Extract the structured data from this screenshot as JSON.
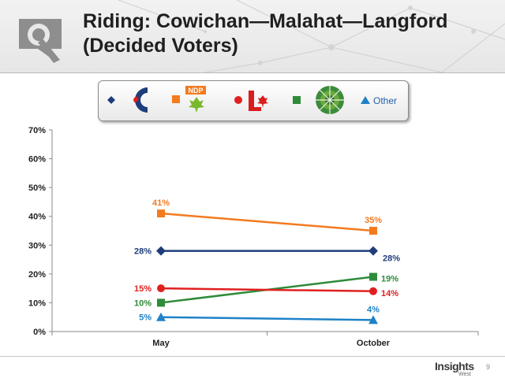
{
  "header": {
    "title_line1": "Riding: Cowichan—Malahat—Langford",
    "title_line2": "(Decided Voters)"
  },
  "legend": {
    "items": [
      {
        "name": "Conservative",
        "icon": "conservative-logo-icon",
        "marker": "diamond",
        "color": "#1f3d7a"
      },
      {
        "name": "NDP",
        "icon": "ndp-logo-icon",
        "marker": "square",
        "color": "#f47a20"
      },
      {
        "name": "Liberal",
        "icon": "liberal-logo-icon",
        "marker": "circle",
        "color": "#e02020"
      },
      {
        "name": "Green",
        "icon": "green-logo-icon",
        "marker": "square",
        "color": "#2e8b3a"
      },
      {
        "name": "Other",
        "icon": "triangle-marker-icon",
        "marker": "triangle",
        "color": "#1f82c8"
      }
    ],
    "other_label": "Other"
  },
  "chart_data": {
    "type": "line",
    "title": "Riding: Cowichan—Malahat—Langford (Decided Voters)",
    "categories": [
      "May",
      "October"
    ],
    "ylim": [
      0,
      70
    ],
    "yticks": [
      0,
      10,
      20,
      30,
      40,
      50,
      60,
      70
    ],
    "yticklabels": [
      "0%",
      "10%",
      "20%",
      "30%",
      "40%",
      "50%",
      "60%",
      "70%"
    ],
    "series": [
      {
        "name": "NDP",
        "values": [
          41,
          35
        ],
        "labels": [
          "41%",
          "35%"
        ],
        "color": "#f47a20",
        "marker": "square",
        "label_side": [
          "above",
          "above"
        ]
      },
      {
        "name": "Conservative",
        "values": [
          28,
          28
        ],
        "labels": [
          "28%",
          "28%"
        ],
        "color": "#1f3d7a",
        "marker": "diamond",
        "label_side": [
          "left",
          "below-right"
        ]
      },
      {
        "name": "Green",
        "values": [
          10,
          19
        ],
        "labels": [
          "10%",
          "19%"
        ],
        "color": "#2e8b3a",
        "marker": "square",
        "label_side": [
          "left",
          "right"
        ]
      },
      {
        "name": "Liberal",
        "values": [
          15,
          14
        ],
        "labels": [
          "15%",
          "14%"
        ],
        "color": "#e02020",
        "marker": "circle",
        "label_side": [
          "left",
          "right"
        ]
      },
      {
        "name": "Other",
        "values": [
          5,
          4
        ],
        "labels": [
          "5%",
          "4%"
        ],
        "color": "#1f82c8",
        "marker": "triangle",
        "label_side": [
          "left",
          "above"
        ]
      }
    ]
  },
  "footer": {
    "brand_name": "Insights",
    "brand_sub": "West",
    "page_number": "9"
  }
}
